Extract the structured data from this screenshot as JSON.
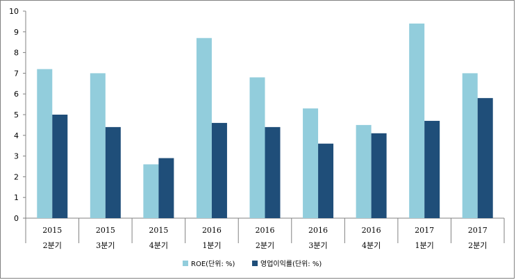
{
  "chart_data": {
    "type": "bar",
    "categories": [
      [
        "2015",
        "2분기"
      ],
      [
        "2015",
        "3분기"
      ],
      [
        "2015",
        "4분기"
      ],
      [
        "2016",
        "1분기"
      ],
      [
        "2016",
        "2분기"
      ],
      [
        "2016",
        "3분기"
      ],
      [
        "2016",
        "4분기"
      ],
      [
        "2017",
        "1분기"
      ],
      [
        "2017",
        "2분기"
      ]
    ],
    "series": [
      {
        "name": "ROE(단위: %)",
        "color": "#92CDDC",
        "values": [
          7.2,
          7.0,
          2.6,
          8.7,
          6.8,
          5.3,
          4.5,
          9.4,
          7.0
        ]
      },
      {
        "name": "영업이익률(단위: %)",
        "color": "#1F4E79",
        "values": [
          5.0,
          4.4,
          2.9,
          4.6,
          4.4,
          3.6,
          4.1,
          4.7,
          5.8
        ]
      }
    ],
    "ylim": [
      0,
      10
    ],
    "yticks": [
      "0",
      "1",
      "2",
      "3",
      "4",
      "5",
      "6",
      "7",
      "8",
      "9",
      "10"
    ],
    "grid": false,
    "legend_position": "bottom"
  }
}
